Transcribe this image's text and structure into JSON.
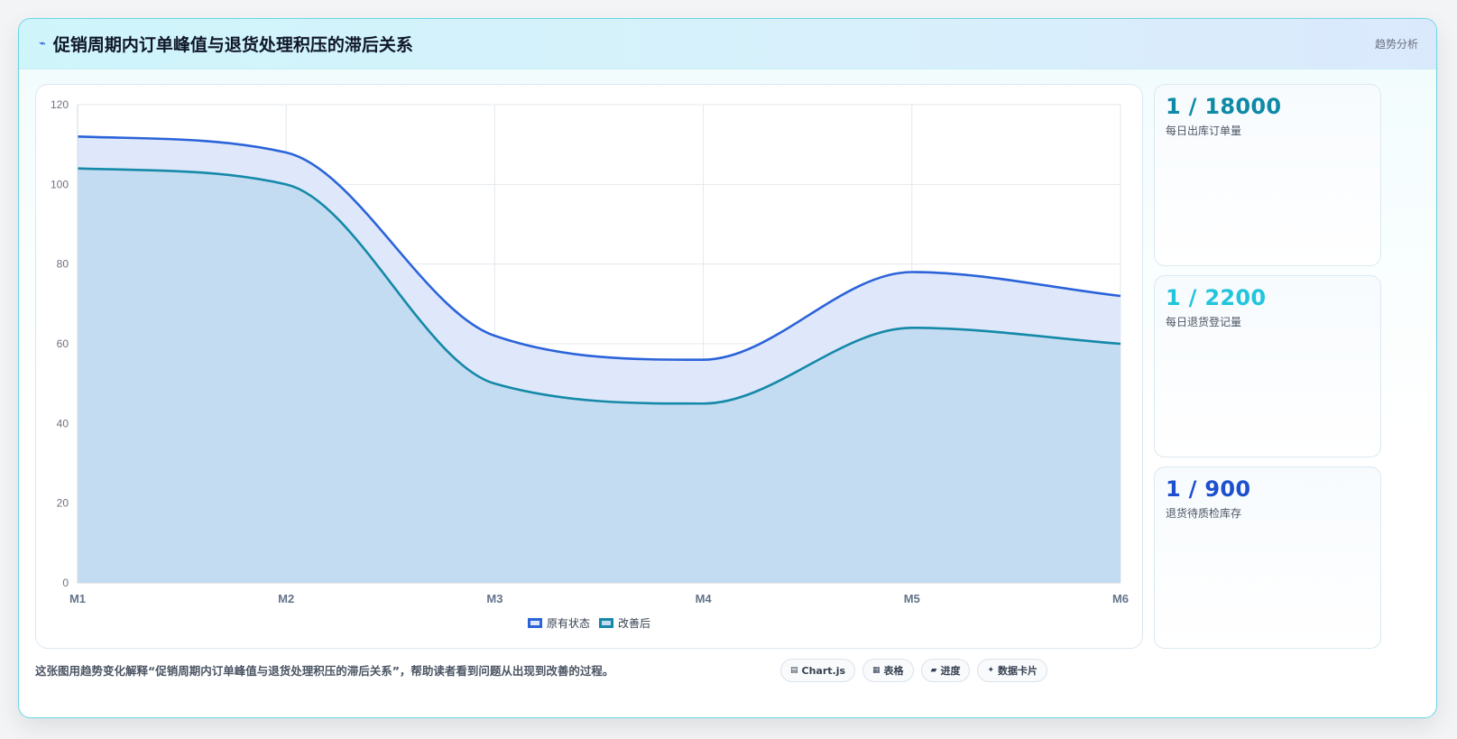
{
  "header": {
    "icon": "trend-line-icon",
    "title": "促销周期内订单峰值与退货处理积压的滞后关系",
    "tag": "趋势分析"
  },
  "chart_data": {
    "type": "area",
    "categories": [
      "M1",
      "M2",
      "M3",
      "M4",
      "M5",
      "M6"
    ],
    "ylim": [
      0,
      120
    ],
    "yticks": [
      0,
      20,
      40,
      60,
      80,
      100,
      120
    ],
    "grid": true,
    "legend_position": "bottom",
    "series": [
      {
        "name": "原有状态",
        "values": [
          112,
          108,
          62,
          56,
          78,
          72
        ],
        "color": "#2b63d9",
        "fill": "#dfe8fb"
      },
      {
        "name": "改善后",
        "values": [
          104,
          100,
          50,
          45,
          64,
          60
        ],
        "color": "#1589a8",
        "fill": "#c4dcf1"
      }
    ]
  },
  "stats": [
    {
      "value": "1 / 18000",
      "label": "每日出库订单量",
      "color": "#0e8aa6"
    },
    {
      "value": "1 / 2200",
      "label": "每日退货登记量",
      "color": "#22c5dc"
    },
    {
      "value": "1 / 900",
      "label": "退货待质检库存",
      "color": "#1d4fcf"
    }
  ],
  "footer": {
    "text": "这张图用趋势变化解释“促销周期内订单峰值与退货处理积压的滞后关系”，帮助读者看到问题从出现到改善的过程。",
    "chips": [
      {
        "icon": "chart-icon",
        "glyph": "▤",
        "label": "Chart.js"
      },
      {
        "icon": "table-icon",
        "glyph": "▦",
        "label": "表格"
      },
      {
        "icon": "progress-icon",
        "glyph": "▰",
        "label": "进度"
      },
      {
        "icon": "data-card-icon",
        "glyph": "✦",
        "label": "数据卡片"
      }
    ]
  }
}
